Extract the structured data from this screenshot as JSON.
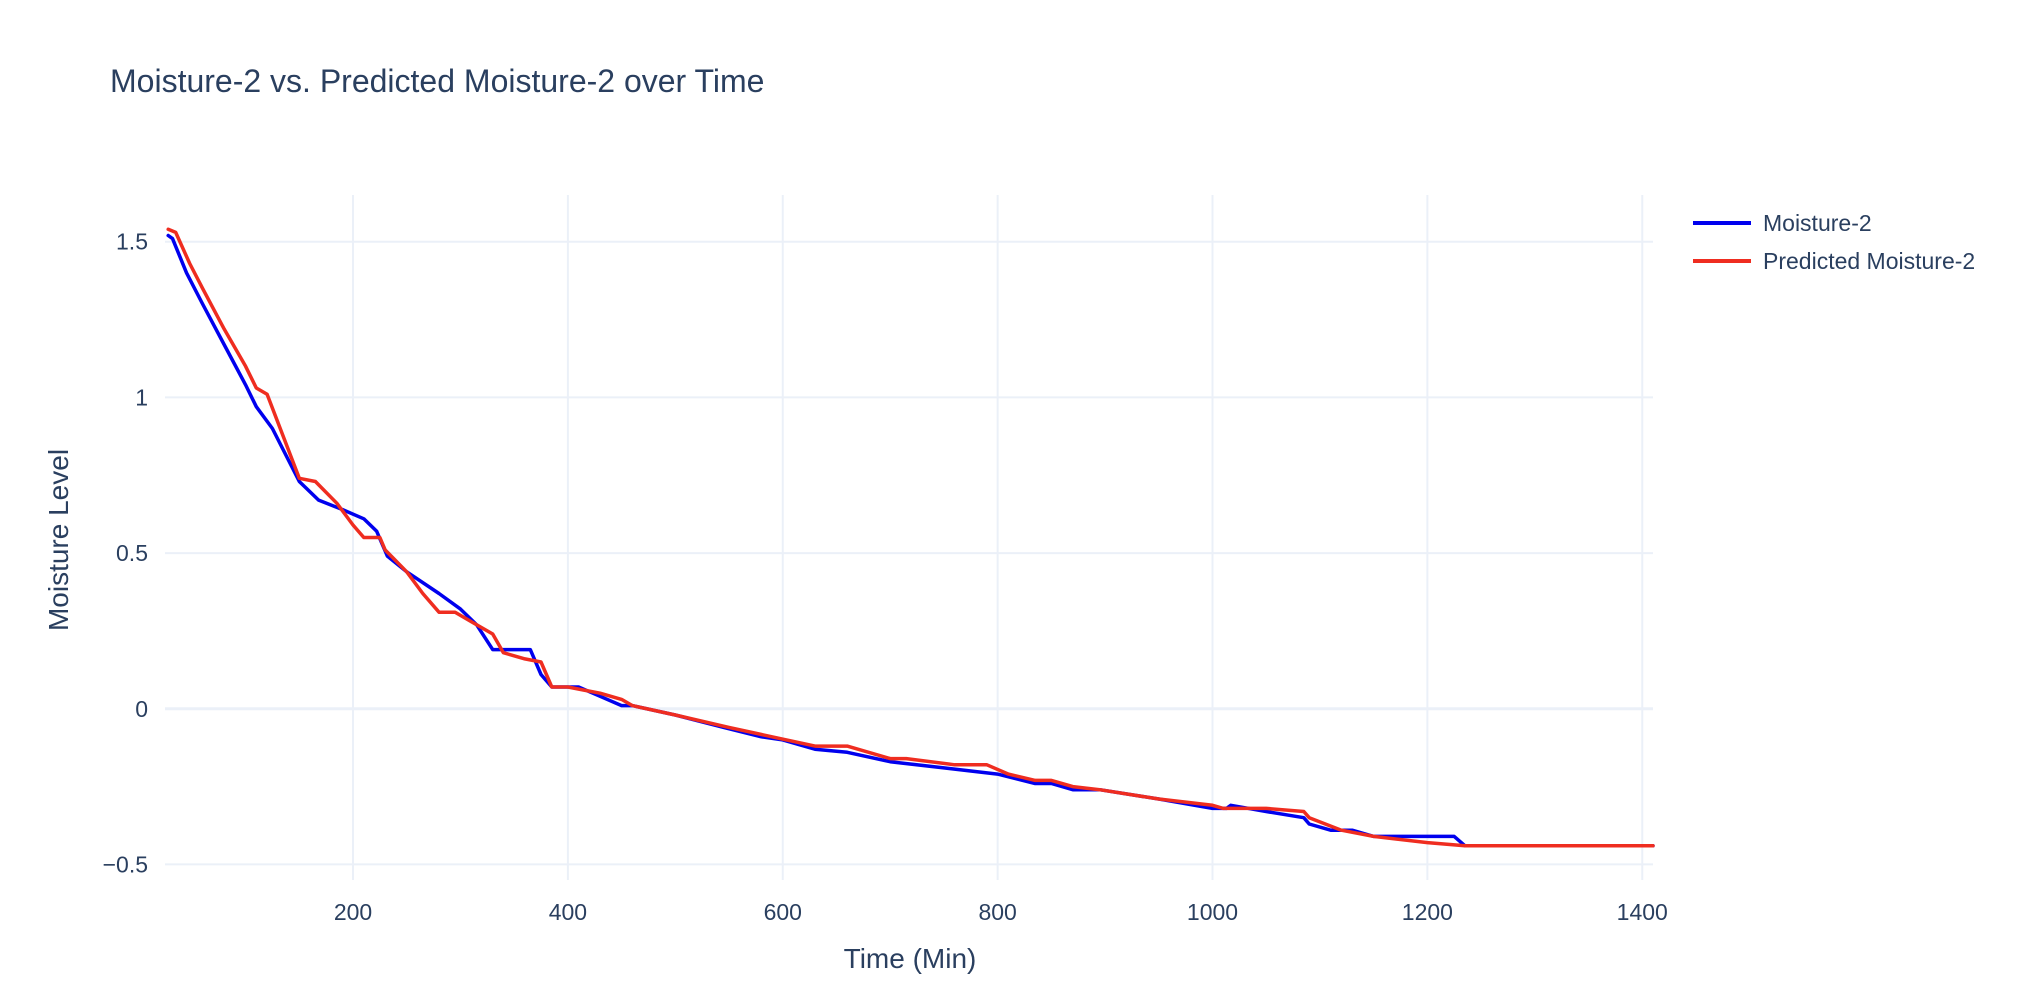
{
  "chart_data": {
    "type": "line",
    "title": "Moisture-2 vs. Predicted Moisture-2 over Time",
    "xlabel": "Time (Min)",
    "ylabel": "Moisture Level",
    "xlim": [
      25,
      1410
    ],
    "ylim": [
      -0.55,
      1.65
    ],
    "x_ticks": [
      200,
      400,
      600,
      800,
      1000,
      1200,
      1400
    ],
    "x_tick_labels": [
      "200",
      "400",
      "600",
      "800",
      "1000",
      "1200",
      "1400"
    ],
    "y_ticks": [
      -0.5,
      0,
      0.5,
      1,
      1.5
    ],
    "y_tick_labels": [
      "−0.5",
      "0",
      "0.5",
      "1",
      "1.5"
    ],
    "grid": true,
    "legend_position": "top-right",
    "series": [
      {
        "name": "Moisture-2",
        "color": "#0000ee",
        "points": [
          [
            28,
            1.52
          ],
          [
            32,
            1.51
          ],
          [
            45,
            1.4
          ],
          [
            60,
            1.3
          ],
          [
            80,
            1.17
          ],
          [
            100,
            1.04
          ],
          [
            110,
            0.97
          ],
          [
            125,
            0.9
          ],
          [
            150,
            0.73
          ],
          [
            168,
            0.67
          ],
          [
            190,
            0.64
          ],
          [
            210,
            0.61
          ],
          [
            222,
            0.57
          ],
          [
            232,
            0.49
          ],
          [
            250,
            0.44
          ],
          [
            280,
            0.37
          ],
          [
            300,
            0.32
          ],
          [
            315,
            0.27
          ],
          [
            330,
            0.19
          ],
          [
            345,
            0.19
          ],
          [
            360,
            0.19
          ],
          [
            365,
            0.19
          ],
          [
            375,
            0.11
          ],
          [
            385,
            0.07
          ],
          [
            400,
            0.07
          ],
          [
            410,
            0.07
          ],
          [
            430,
            0.04
          ],
          [
            450,
            0.01
          ],
          [
            460,
            0.01
          ],
          [
            500,
            -0.02
          ],
          [
            545,
            -0.06
          ],
          [
            580,
            -0.09
          ],
          [
            600,
            -0.1
          ],
          [
            630,
            -0.13
          ],
          [
            660,
            -0.14
          ],
          [
            700,
            -0.17
          ],
          [
            750,
            -0.19
          ],
          [
            800,
            -0.21
          ],
          [
            835,
            -0.24
          ],
          [
            850,
            -0.24
          ],
          [
            870,
            -0.26
          ],
          [
            895,
            -0.26
          ],
          [
            950,
            -0.29
          ],
          [
            1000,
            -0.32
          ],
          [
            1013,
            -0.32
          ],
          [
            1017,
            -0.31
          ],
          [
            1050,
            -0.33
          ],
          [
            1085,
            -0.35
          ],
          [
            1090,
            -0.37
          ],
          [
            1110,
            -0.39
          ],
          [
            1130,
            -0.39
          ],
          [
            1150,
            -0.41
          ],
          [
            1200,
            -0.41
          ],
          [
            1225,
            -0.41
          ],
          [
            1235,
            -0.44
          ],
          [
            1300,
            -0.44
          ],
          [
            1410,
            -0.44
          ]
        ]
      },
      {
        "name": "Predicted Moisture-2",
        "color": "#ef2d20",
        "points": [
          [
            28,
            1.54
          ],
          [
            35,
            1.53
          ],
          [
            48,
            1.43
          ],
          [
            60,
            1.35
          ],
          [
            80,
            1.22
          ],
          [
            100,
            1.1
          ],
          [
            110,
            1.03
          ],
          [
            120,
            1.01
          ],
          [
            150,
            0.74
          ],
          [
            165,
            0.73
          ],
          [
            185,
            0.66
          ],
          [
            200,
            0.59
          ],
          [
            210,
            0.55
          ],
          [
            225,
            0.55
          ],
          [
            230,
            0.51
          ],
          [
            250,
            0.44
          ],
          [
            265,
            0.37
          ],
          [
            280,
            0.31
          ],
          [
            295,
            0.31
          ],
          [
            310,
            0.28
          ],
          [
            330,
            0.24
          ],
          [
            340,
            0.18
          ],
          [
            360,
            0.16
          ],
          [
            375,
            0.15
          ],
          [
            385,
            0.07
          ],
          [
            400,
            0.07
          ],
          [
            415,
            0.06
          ],
          [
            430,
            0.05
          ],
          [
            450,
            0.03
          ],
          [
            460,
            0.01
          ],
          [
            500,
            -0.02
          ],
          [
            550,
            -0.06
          ],
          [
            590,
            -0.09
          ],
          [
            630,
            -0.12
          ],
          [
            660,
            -0.12
          ],
          [
            700,
            -0.16
          ],
          [
            715,
            -0.16
          ],
          [
            760,
            -0.18
          ],
          [
            790,
            -0.18
          ],
          [
            810,
            -0.21
          ],
          [
            835,
            -0.23
          ],
          [
            850,
            -0.23
          ],
          [
            870,
            -0.25
          ],
          [
            895,
            -0.26
          ],
          [
            950,
            -0.29
          ],
          [
            1000,
            -0.31
          ],
          [
            1010,
            -0.32
          ],
          [
            1050,
            -0.32
          ],
          [
            1085,
            -0.33
          ],
          [
            1090,
            -0.35
          ],
          [
            1120,
            -0.39
          ],
          [
            1150,
            -0.41
          ],
          [
            1200,
            -0.43
          ],
          [
            1235,
            -0.44
          ],
          [
            1300,
            -0.44
          ],
          [
            1410,
            -0.44
          ]
        ]
      }
    ]
  }
}
